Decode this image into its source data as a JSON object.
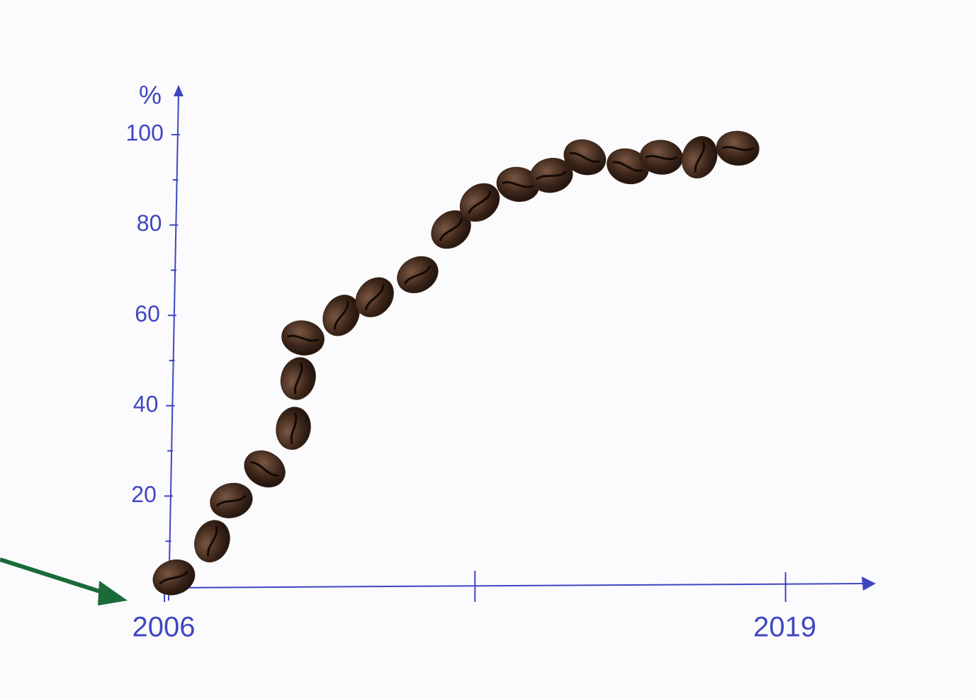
{
  "chart_data": {
    "type": "scatter",
    "y_axis_label": "%",
    "x": [
      2006.2,
      2007.0,
      2007.4,
      2008.1,
      2008.7,
      2008.8,
      2008.9,
      2009.7,
      2010.4,
      2011.3,
      2012.0,
      2012.6,
      2013.4,
      2014.1,
      2014.8,
      2015.7,
      2016.4,
      2017.2,
      2018.0
    ],
    "series": [
      {
        "color": "#3b2519",
        "values": [
          2,
          10,
          19,
          26,
          35,
          46,
          55,
          60,
          64,
          69,
          79,
          85,
          89,
          91,
          95,
          93,
          95,
          95,
          97
        ]
      }
    ],
    "xlim": [
      2006,
      2020.8
    ],
    "xticks": [
      2006,
      2019
    ],
    "x_minor_ticks": [
      2012.5
    ],
    "ylim": [
      0,
      111
    ],
    "yticks": [
      20,
      40,
      60,
      80,
      100
    ],
    "y_minor_ticks": [
      10,
      30,
      50,
      70,
      90
    ],
    "axis_color": "#4046c0"
  }
}
